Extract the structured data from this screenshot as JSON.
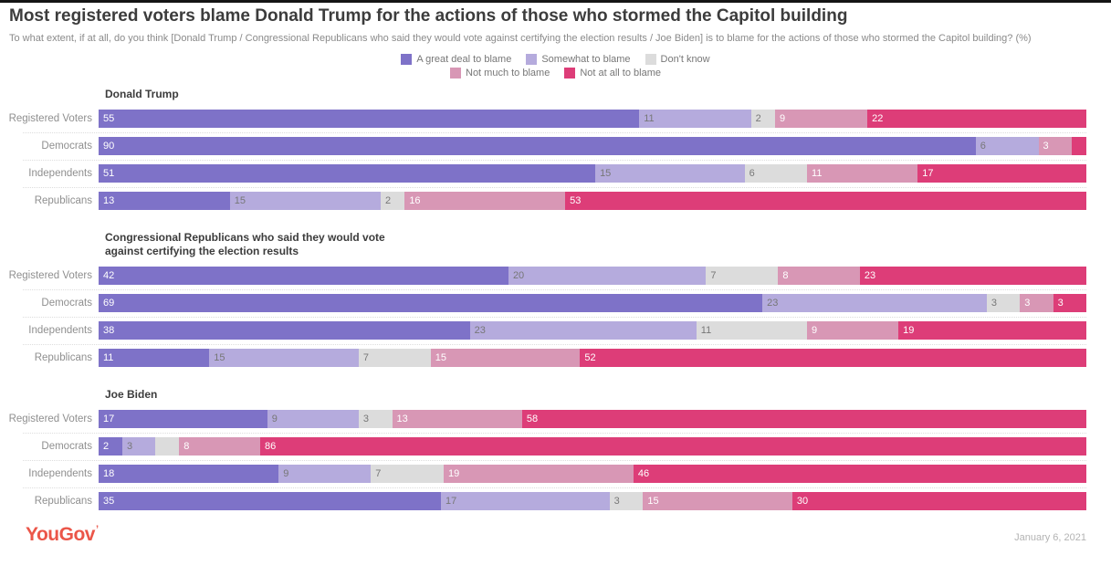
{
  "header": {
    "title": "Most registered voters blame Donald Trump for the actions of those who stormed the Capitol building",
    "subtitle": "To what extent, if at all, do you think [Donald Trump / Congressional Republicans who said they would vote against certifying the election results / Joe Biden] is to blame for the actions of those who stormed the Capitol building? (%)"
  },
  "chart_data": {
    "type": "bar",
    "orientation": "horizontal",
    "stacked": true,
    "unit": "%",
    "axis_range": [
      0,
      100
    ],
    "legend_position": "top-center",
    "series": [
      {
        "name": "A great deal to blame",
        "color": "#7e72c8",
        "label_color": "#ffffff"
      },
      {
        "name": "Somewhat to blame",
        "color": "#b5abdd",
        "label_color": "#777777"
      },
      {
        "name": "Don't know",
        "color": "#dcdcdc",
        "label_color": "#777777"
      },
      {
        "name": "Not much to blame",
        "color": "#d897b5",
        "label_color": "#ffffff"
      },
      {
        "name": "Not at all to blame",
        "color": "#dd3d78",
        "label_color": "#ffffff"
      }
    ],
    "groups": [
      {
        "heading": "Donald Trump",
        "rows": [
          {
            "label": "Registered Voters",
            "values": [
              55,
              11,
              2,
              9,
              22
            ],
            "labels": [
              "55",
              "11",
              "2",
              "9",
              "22"
            ]
          },
          {
            "label": "Democrats",
            "values": [
              90,
              6,
              0,
              3,
              1
            ],
            "labels": [
              "90",
              "6",
              "",
              "3",
              ""
            ]
          },
          {
            "label": "Independents",
            "values": [
              51,
              15,
              6,
              11,
              17
            ],
            "labels": [
              "51",
              "15",
              "6",
              "11",
              "17"
            ]
          },
          {
            "label": "Republicans",
            "values": [
              13,
              15,
              2,
              16,
              53
            ],
            "labels": [
              "13",
              "15",
              "2",
              "16",
              "53"
            ]
          }
        ]
      },
      {
        "heading": "Congressional Republicans who said they would vote against certifying the election results",
        "rows": [
          {
            "label": "Registered Voters",
            "values": [
              42,
              20,
              7,
              8,
              23
            ],
            "labels": [
              "42",
              "20",
              "7",
              "8",
              "23"
            ]
          },
          {
            "label": "Democrats",
            "values": [
              69,
              23,
              3,
              3,
              3
            ],
            "labels": [
              "69",
              "23",
              "3",
              "3",
              "3"
            ]
          },
          {
            "label": "Independents",
            "values": [
              38,
              23,
              11,
              9,
              19
            ],
            "labels": [
              "38",
              "23",
              "11",
              "9",
              "19"
            ]
          },
          {
            "label": "Republicans",
            "values": [
              11,
              15,
              7,
              15,
              52
            ],
            "labels": [
              "11",
              "15",
              "7",
              "15",
              "52"
            ]
          }
        ]
      },
      {
        "heading": "Joe Biden",
        "rows": [
          {
            "label": "Registered Voters",
            "values": [
              17,
              9,
              3,
              13,
              58
            ],
            "labels": [
              "17",
              "9",
              "3",
              "13",
              "58"
            ]
          },
          {
            "label": "Democrats",
            "values": [
              2,
              3,
              2,
              8,
              86
            ],
            "labels": [
              "2",
              "3",
              "",
              "8",
              "86"
            ]
          },
          {
            "label": "Independents",
            "values": [
              18,
              9,
              7,
              19,
              46
            ],
            "labels": [
              "18",
              "9",
              "7",
              "19",
              "46"
            ]
          },
          {
            "label": "Republicans",
            "values": [
              35,
              17,
              3,
              15,
              30
            ],
            "labels": [
              "35",
              "17",
              "3",
              "15",
              "30"
            ]
          }
        ]
      }
    ]
  },
  "footer": {
    "brand": "YouGov",
    "date": "January 6, 2021"
  }
}
